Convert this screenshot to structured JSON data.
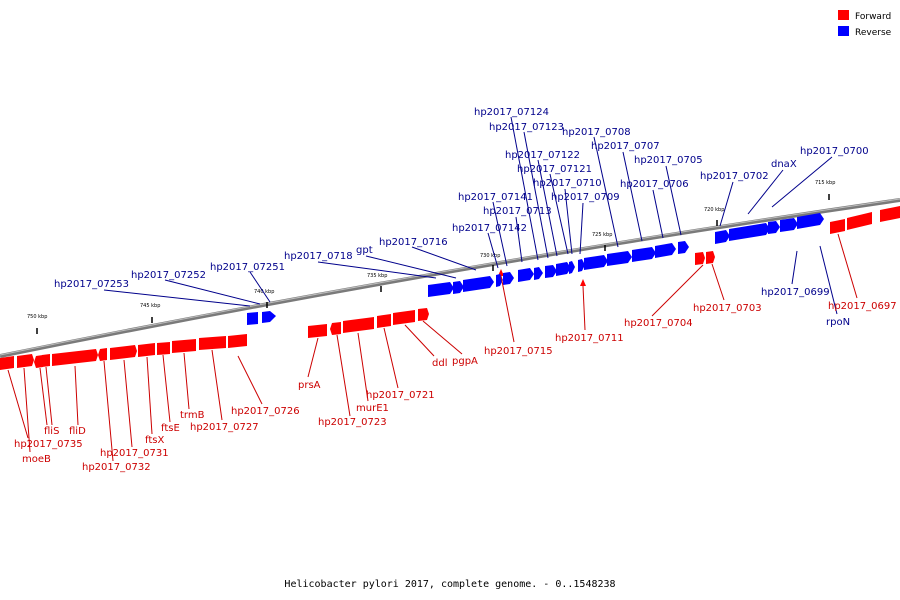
{
  "caption": "Helicobacter pylori 2017, complete genome. - 0..1548238",
  "legend": [
    {
      "label": "Forward",
      "color": "#ff0000"
    },
    {
      "label": "Reverse",
      "color": "#0000ff"
    }
  ],
  "colors": {
    "forward": "#ff0000",
    "reverse": "#0000ff",
    "forward_label": "#cc0000",
    "reverse_label": "#00008b",
    "backbone": "#888888"
  },
  "ticks": [
    "715 kbp",
    "720 kbp",
    "725 kbp",
    "730 kbp",
    "735 kbp",
    "740 kbp",
    "745 kbp",
    "750 kbp"
  ],
  "forward_labels": [
    "hp2017_0735",
    "moeB",
    "fliS",
    "fliD",
    "hp2017_0732",
    "hp2017_0731",
    "ftsX",
    "ftsE",
    "trmB",
    "hp2017_0727",
    "hp2017_0726",
    "prsA",
    "hp2017_0723",
    "murE1",
    "hp2017_0721",
    "ddl",
    "pgpA",
    "hp2017_0715",
    "hp2017_0711",
    "hp2017_0704",
    "hp2017_0703",
    "hp2017_0697"
  ],
  "reverse_labels": [
    "hp2017_07253",
    "hp2017_07252",
    "hp2017_07251",
    "hp2017_0718",
    "gpt",
    "hp2017_0716",
    "hp2017_07142",
    "hp2017_07141",
    "hp2017_0713",
    "hp2017_07124",
    "hp2017_07123",
    "hp2017_07122",
    "hp2017_07121",
    "hp2017_0710",
    "hp2017_0709",
    "hp2017_0708",
    "hp2017_0707",
    "hp2017_0706",
    "hp2017_0705",
    "hp2017_0702",
    "dnaX",
    "hp2017_0700",
    "hp2017_0699",
    "rpoN"
  ]
}
